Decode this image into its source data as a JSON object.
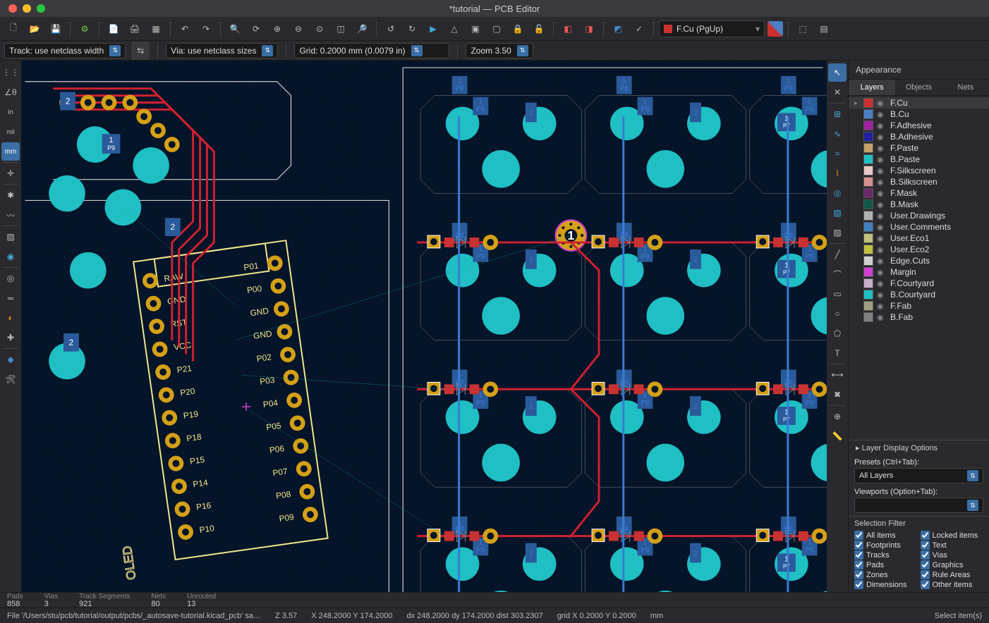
{
  "window": {
    "title": "*tutorial — PCB Editor"
  },
  "toolbar": {
    "layer_selector": {
      "swatch": "#c83232",
      "label": "F.Cu (PgUp)"
    }
  },
  "options": {
    "track": "Track: use netclass width",
    "via": "Via: use netclass sizes",
    "grid": "Grid: 0.2000 mm (0.0079 in)",
    "zoom": "Zoom 3.50"
  },
  "appearance": {
    "title": "Appearance",
    "tabs": [
      "Layers",
      "Objects",
      "Nets"
    ],
    "active_tab": 0,
    "layers": [
      {
        "name": "F.Cu",
        "color": "#c83232",
        "selected": true
      },
      {
        "name": "B.Cu",
        "color": "#4d7fc4"
      },
      {
        "name": "F.Adhesive",
        "color": "#a020a0"
      },
      {
        "name": "B.Adhesive",
        "color": "#2020a0"
      },
      {
        "name": "F.Paste",
        "color": "#c4a068"
      },
      {
        "name": "B.Paste",
        "color": "#1fbfc4"
      },
      {
        "name": "F.Silkscreen",
        "color": "#e8c8c8"
      },
      {
        "name": "B.Silkscreen",
        "color": "#d89090"
      },
      {
        "name": "F.Mask",
        "color": "#6a2a6a"
      },
      {
        "name": "B.Mask",
        "color": "#105848"
      },
      {
        "name": "User.Drawings",
        "color": "#b0b0b0"
      },
      {
        "name": "User.Comments",
        "color": "#4080c0"
      },
      {
        "name": "User.Eco1",
        "color": "#c0c080"
      },
      {
        "name": "User.Eco2",
        "color": "#c0c040"
      },
      {
        "name": "Edge.Cuts",
        "color": "#d0d0d0"
      },
      {
        "name": "Margin",
        "color": "#d040d0"
      },
      {
        "name": "F.Courtyard",
        "color": "#c8b0c8"
      },
      {
        "name": "B.Courtyard",
        "color": "#1fbfc4"
      },
      {
        "name": "F.Fab",
        "color": "#a0a080"
      },
      {
        "name": "B.Fab",
        "color": "#808080"
      }
    ],
    "layer_display": "Layer Display Options",
    "presets_label": "Presets (Ctrl+Tab):",
    "presets_value": "All Layers",
    "viewports_label": "Viewports (Option+Tab):",
    "viewports_value": "",
    "selfilter_title": "Selection Filter",
    "selfilter": [
      [
        "All items",
        "Locked items"
      ],
      [
        "Footprints",
        "Text"
      ],
      [
        "Tracks",
        "Vias"
      ],
      [
        "Pads",
        "Graphics"
      ],
      [
        "Zones",
        "Rule Areas"
      ],
      [
        "Dimensions",
        "Other items"
      ]
    ]
  },
  "stats": {
    "pads": {
      "label": "Pads",
      "value": "858"
    },
    "vias": {
      "label": "Vias",
      "value": "3"
    },
    "tracks": {
      "label": "Track Segments",
      "value": "921"
    },
    "nets": {
      "label": "Nets",
      "value": "80"
    },
    "unrout": {
      "label": "Unrouted",
      "value": "13"
    }
  },
  "status": {
    "file": "File '/Users/stu/pcb/tutorial/output/pcbs/_autosave-tutorial.kicad_pcb' sa…",
    "z": "Z 3.57",
    "xy": "X 248.2000  Y 174.2000",
    "dxy": "dx 248.2000  dy 174.2000  dist 303.2307",
    "grid": "grid X 0.2000  Y 0.2000",
    "units": "mm",
    "hint": "Select item(s)"
  },
  "canvas": {
    "bg": "#051428",
    "colors": {
      "pad": "#1fbfc4",
      "silk": "#f0e68c",
      "trk_f": "#d02030",
      "trk_b": "#3a7bd5",
      "edge": "#cfcfcf",
      "crt": "#888888",
      "refbox": "#2a5a9a",
      "gold": "#d4a017"
    },
    "module": {
      "left_labels": [
        "RAW",
        "GND",
        "RST",
        "VCC",
        "P21",
        "P20",
        "P19",
        "P18",
        "P15",
        "P14",
        "P16",
        "P10"
      ],
      "right_labels": [
        "P01",
        "P00",
        "GND",
        "GND",
        "P02",
        "P03",
        "P04",
        "P05",
        "P06",
        "P07",
        "P08",
        "P09"
      ],
      "oled_label": "OLED"
    },
    "led_cells": {
      "refs": [
        [
          "P8",
          "P9"
        ],
        [
          "P8",
          "P9"
        ],
        [
          "P8",
          "P9"
        ]
      ],
      "pin1": "1",
      "pin_p7": "P7"
    }
  }
}
